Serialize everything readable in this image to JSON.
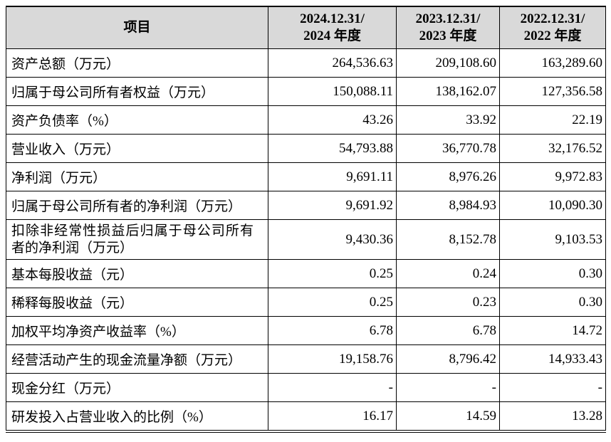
{
  "table": {
    "header": [
      "项目",
      [
        "2024.12.31/",
        "2024 年度"
      ],
      [
        "2023.12.31/",
        "2023 年度"
      ],
      [
        "2022.12.31/",
        "2022 年度"
      ]
    ],
    "rows": [
      [
        "资产总额（万元）",
        "264,536.63",
        "209,108.60",
        "163,289.60"
      ],
      [
        "归属于母公司所有者权益（万元）",
        "150,088.11",
        "138,162.07",
        "127,356.58"
      ],
      [
        "资产负债率（%）",
        "43.26",
        "33.92",
        "22.19"
      ],
      [
        "营业收入（万元）",
        "54,793.88",
        "36,770.78",
        "32,176.52"
      ],
      [
        "净利润（万元）",
        "9,691.11",
        "8,976.26",
        "9,972.83"
      ],
      [
        "归属于母公司所有者的净利润（万元）",
        "9,691.92",
        "8,984.93",
        "10,090.30"
      ],
      [
        "扣除非经常性损益后归属于母公司所有者的净利润（万元）",
        "9,430.36",
        "8,152.78",
        "9,103.53"
      ],
      [
        "基本每股收益（元）",
        "0.25",
        "0.24",
        "0.30"
      ],
      [
        "稀释每股收益（元）",
        "0.25",
        "0.23",
        "0.30"
      ],
      [
        "加权平均净资产收益率（%）",
        "6.78",
        "6.78",
        "14.72"
      ],
      [
        "经营活动产生的现金流量净额（万元）",
        "19,158.76",
        "8,796.42",
        "14,933.43"
      ],
      [
        "现金分红（万元）",
        "-",
        "-",
        "-"
      ],
      [
        "研发投入占营业收入的比例（%）",
        "16.17",
        "14.59",
        "13.28"
      ]
    ]
  }
}
